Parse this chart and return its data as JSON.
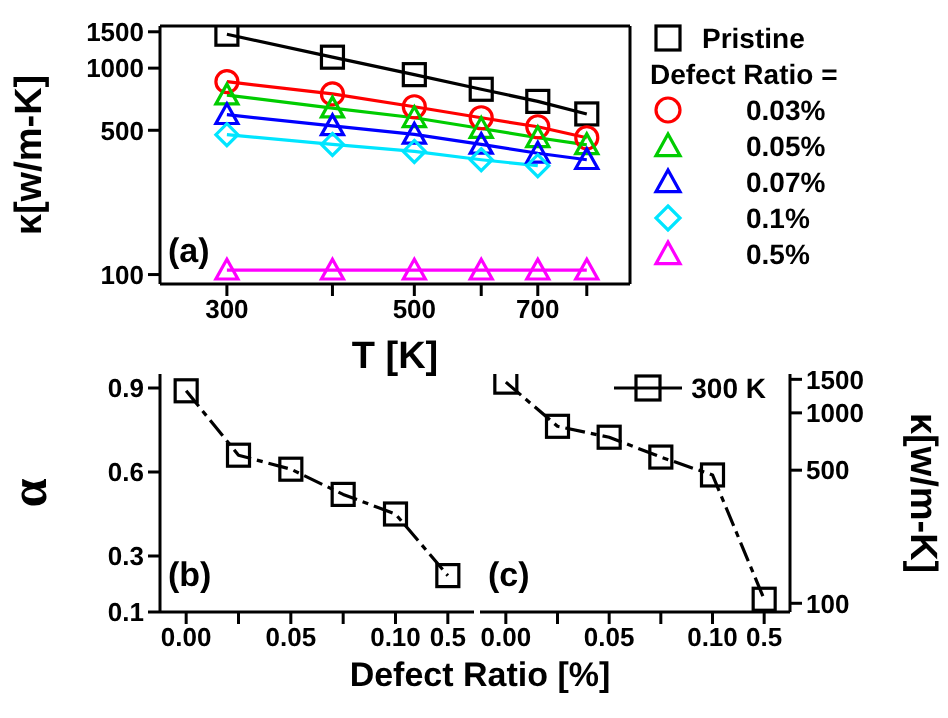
{
  "chart_data": [
    {
      "type": "line",
      "xlabel": "T [K]",
      "ylabel": "κ[w/m-K]",
      "legend_title": "Defect Ratio =",
      "legend": "right",
      "log": "xy",
      "line_style": "solid",
      "x": [
        300,
        400,
        500,
        600,
        700,
        800
      ],
      "xlim": [
        250,
        900
      ],
      "xticks": [
        300,
        {
          "value": 400,
          "label": null
        },
        500,
        {
          "value": 600,
          "label": null
        },
        700,
        {
          "value": 800,
          "label": null
        }
      ],
      "ylim": [
        90,
        1600
      ],
      "yticks": [
        100,
        500,
        1000,
        1500
      ],
      "annotations": [
        "(a)"
      ],
      "series": [
        {
          "name": "Pristine",
          "color": "#000000",
          "marker": "square",
          "values": [
            1460,
            1130,
            930,
            790,
            690,
            600
          ]
        },
        {
          "name": "0.03%",
          "color": "#ff0000",
          "marker": "circle",
          "values": [
            860,
            750,
            650,
            575,
            520,
            460
          ]
        },
        {
          "name": "0.05%",
          "color": "#00cc00",
          "marker": "triangle",
          "values": [
            740,
            640,
            575,
            510,
            460,
            425
          ]
        },
        {
          "name": "0.07%",
          "color": "#0000ff",
          "marker": "triangle",
          "values": [
            595,
            525,
            478,
            427,
            387,
            360
          ]
        },
        {
          "name": "0.1%",
          "color": "#00e5ff",
          "marker": "diamond",
          "values": [
            476,
            427,
            395,
            360,
            337,
            null
          ]
        },
        {
          "name": "0.5%",
          "color": "#ff00ff",
          "marker": "triangle",
          "values": [
            105,
            105,
            105,
            105,
            105,
            105
          ]
        }
      ]
    },
    {
      "type": "line",
      "xlabel": "Defect Ratio [%]",
      "ylabel": "α",
      "line_style": "dashed",
      "marker": "square",
      "categories": [
        "0.00",
        null,
        "0.05",
        null,
        "0.10",
        "0.5"
      ],
      "ylim": [
        0.1,
        0.95
      ],
      "yticks": [
        0.9,
        0.6,
        0.3,
        0.1
      ],
      "annotations": [
        "(b)"
      ],
      "series": [
        {
          "color": "#000000",
          "values": [
            0.89,
            0.66,
            0.61,
            0.52,
            0.45,
            0.23
          ]
        }
      ]
    },
    {
      "type": "line",
      "y2label": "κ[w/m-K]",
      "line_style": "dashed",
      "marker": "square",
      "legend": "top right",
      "log": "y2",
      "categories": [
        "0.00",
        null,
        "0.05",
        null,
        "0.10",
        "0.5"
      ],
      "y2lim": [
        90,
        1600
      ],
      "y2ticks": [
        100,
        500,
        1000,
        1500
      ],
      "annotations": [
        "(c)"
      ],
      "series": [
        {
          "name": "300 K",
          "color": "#000000",
          "axis": "y2",
          "values": [
            1450,
            850,
            745,
            586,
            472,
            105
          ]
        }
      ]
    }
  ]
}
